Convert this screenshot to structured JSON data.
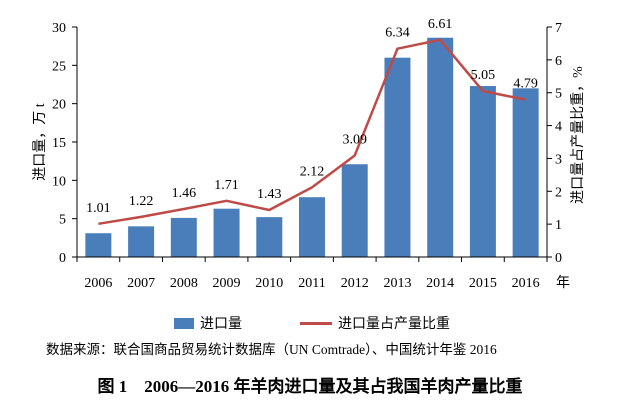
{
  "chart_data": {
    "type": "bar",
    "categories": [
      "2006",
      "2007",
      "2008",
      "2009",
      "2010",
      "2011",
      "2012",
      "2013",
      "2014",
      "2015",
      "2016"
    ],
    "x_unit": "年",
    "ylabel": "进口量，万 t",
    "y2label": "进口量占产量比重，%",
    "ylim": [
      0,
      30
    ],
    "yticks": [
      0,
      5,
      10,
      15,
      20,
      25,
      30
    ],
    "y2lim": [
      0,
      7
    ],
    "y2ticks": [
      0,
      1,
      2,
      3,
      4,
      5,
      6,
      7
    ],
    "grid": false,
    "legend_position": "bottom",
    "series": [
      {
        "name": "进口量",
        "type": "bar",
        "axis": "left",
        "color": "#4a7ebb",
        "values": [
          3.1,
          4.0,
          5.1,
          6.3,
          5.2,
          7.8,
          12.1,
          26.0,
          28.6,
          22.3,
          22.0
        ]
      },
      {
        "name": "进口量占产量比重",
        "type": "line",
        "axis": "right",
        "color": "#be4b48",
        "values": [
          1.01,
          1.22,
          1.46,
          1.71,
          1.43,
          2.12,
          3.09,
          6.34,
          6.61,
          5.05,
          4.79
        ]
      }
    ]
  },
  "source": "数据来源：联合国商品贸易统计数据库（UN Comtrade）、中国统计年鉴 2016",
  "caption": "图 1　2006—2016 年羊肉进口量及其占我国羊肉产量比重"
}
